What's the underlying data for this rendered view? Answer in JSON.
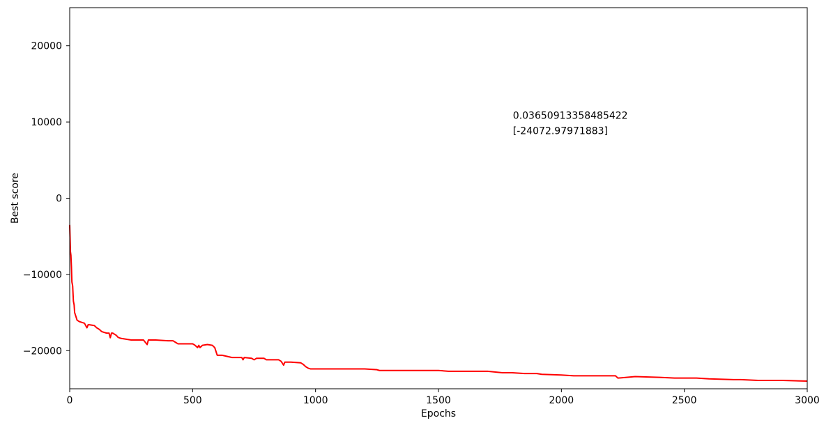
{
  "chart_data": {
    "type": "line",
    "title": "",
    "xlabel": "Epochs",
    "ylabel": "Best score",
    "xlim": [
      0,
      3000
    ],
    "ylim": [
      -25000,
      25000
    ],
    "x_ticks": [
      0,
      500,
      1000,
      1500,
      2000,
      2500,
      3000
    ],
    "x_tick_labels": [
      "0",
      "500",
      "1000",
      "1500",
      "2000",
      "2500",
      "3000"
    ],
    "y_ticks": [
      -20000,
      -10000,
      0,
      10000,
      20000
    ],
    "y_tick_labels": [
      "−20000",
      "−10000",
      "0",
      "10000",
      "20000"
    ],
    "grid": false,
    "annotations": [
      {
        "text": "0.03650913358485422",
        "x": 1800,
        "y": 10400
      },
      {
        "text": "[-24072.97971883]",
        "x": 1800,
        "y": 8400
      }
    ],
    "series": [
      {
        "color": "#ff0000",
        "x": [
          0,
          3,
          5,
          7,
          9,
          12,
          15,
          18,
          20,
          25,
          28,
          30,
          40,
          60,
          70,
          75,
          80,
          100,
          110,
          120,
          130,
          140,
          150,
          160,
          165,
          170,
          175,
          190,
          195,
          200,
          210,
          250,
          300,
          315,
          320,
          350,
          400,
          420,
          430,
          440,
          500,
          510,
          520,
          525,
          530,
          540,
          560,
          580,
          590,
          600,
          620,
          660,
          700,
          705,
          710,
          740,
          750,
          760,
          790,
          800,
          850,
          860,
          870,
          875,
          880,
          900,
          940,
          950,
          960,
          970,
          980,
          1000,
          1050,
          1100,
          1150,
          1200,
          1250,
          1260,
          1300,
          1400,
          1500,
          1540,
          1550,
          1600,
          1700,
          1760,
          1800,
          1850,
          1900,
          1920,
          2000,
          2050,
          2100,
          2200,
          2220,
          2230,
          2300,
          2400,
          2460,
          2500,
          2550,
          2600,
          2700,
          2730,
          2800,
          2900,
          3000
        ],
        "y": [
          -3500,
          -7000,
          -7500,
          -9000,
          -11000,
          -11500,
          -13500,
          -14000,
          -15000,
          -15500,
          -15800,
          -16000,
          -16200,
          -16400,
          -17000,
          -16600,
          -16600,
          -16700,
          -17000,
          -17200,
          -17500,
          -17600,
          -17700,
          -17700,
          -18300,
          -17700,
          -17700,
          -18000,
          -18200,
          -18300,
          -18400,
          -18600,
          -18600,
          -19200,
          -18600,
          -18600,
          -18700,
          -18700,
          -18900,
          -19100,
          -19100,
          -19300,
          -19600,
          -19300,
          -19600,
          -19300,
          -19200,
          -19300,
          -19600,
          -20600,
          -20600,
          -20900,
          -20900,
          -21200,
          -20900,
          -21000,
          -21200,
          -21000,
          -21000,
          -21200,
          -21200,
          -21400,
          -21900,
          -21500,
          -21500,
          -21500,
          -21600,
          -21800,
          -22100,
          -22300,
          -22400,
          -22400,
          -22400,
          -22400,
          -22400,
          -22400,
          -22500,
          -22600,
          -22600,
          -22600,
          -22600,
          -22700,
          -22700,
          -22700,
          -22700,
          -22900,
          -22900,
          -23000,
          -23000,
          -23100,
          -23200,
          -23300,
          -23300,
          -23300,
          -23300,
          -23600,
          -23400,
          -23500,
          -23600,
          -23600,
          -23600,
          -23700,
          -23800,
          -23800,
          -23900,
          -23900,
          -24000
        ]
      }
    ]
  }
}
